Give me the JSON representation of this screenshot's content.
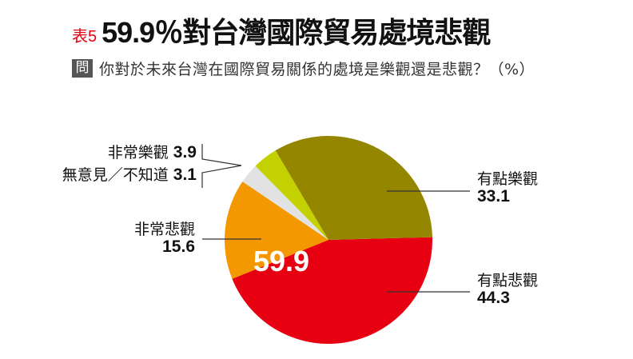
{
  "header": {
    "table_no": "表5",
    "title": "59.9％對台灣國際貿易處境悲觀",
    "question_badge": "問",
    "question": "你對於未來台灣在國際貿易關係的處境是樂觀還是悲觀？（%）"
  },
  "labels": {
    "very_optimistic": {
      "name": "非常樂觀",
      "value": "3.9"
    },
    "no_opinion": {
      "name": "無意見／不知道",
      "value": "3.1"
    },
    "very_pessimistic": {
      "name": "非常悲觀",
      "value": "15.6"
    },
    "somewhat_optimistic": {
      "name": "有點樂觀",
      "value": "33.1"
    },
    "somewhat_pessimistic": {
      "name": "有點悲觀",
      "value": "44.3"
    },
    "pessimistic_total": "59.9"
  },
  "chart_data": {
    "type": "pie",
    "title": "59.9％對台灣國際貿易處境悲觀",
    "subtitle": "你對於未來台灣在國際貿易關係的處境是樂觀還是悲觀？（%）",
    "unit": "%",
    "start_angle_deg": -1.5,
    "direction": "clockwise",
    "categories": [
      "有點悲觀",
      "非常悲觀",
      "無意見／不知道",
      "非常樂觀",
      "有點樂觀"
    ],
    "values": [
      44.3,
      15.6,
      3.1,
      3.9,
      33.1
    ],
    "colors": [
      "#e60012",
      "#f39800",
      "#e2e2e2",
      "#c3d100",
      "#958600"
    ],
    "annotations": [
      {
        "text": "59.9",
        "meaning": "非常悲觀 + 有點悲觀"
      }
    ]
  }
}
